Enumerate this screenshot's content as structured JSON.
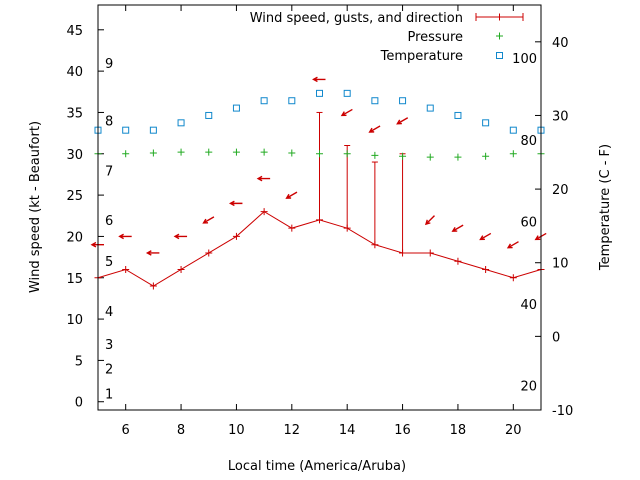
{
  "chart_data": {
    "type": "line",
    "xlabel": "Local time (America/Aruba)",
    "ylabel": "Wind speed (kt - Beaufort)",
    "y2label": "Temperature (C - F)",
    "xlim": [
      5,
      21
    ],
    "ylim": [
      -1,
      48
    ],
    "y2lim": [
      -10,
      45
    ],
    "x_ticks": [
      "6",
      "8",
      "10",
      "12",
      "14",
      "16",
      "18",
      "20"
    ],
    "y_ticks": [
      "0",
      "5",
      "10",
      "15",
      "20",
      "25",
      "30",
      "35",
      "40",
      "45"
    ],
    "y2_ticks": [
      "-10",
      "0",
      "10",
      "20",
      "30",
      "40"
    ],
    "beaufort_labels": [
      {
        "label": "1",
        "wind": 1
      },
      {
        "label": "2",
        "wind": 4
      },
      {
        "label": "3",
        "wind": 7
      },
      {
        "label": "4",
        "wind": 11
      },
      {
        "label": "5",
        "wind": 17
      },
      {
        "label": "6",
        "wind": 22
      },
      {
        "label": "7",
        "wind": 28
      },
      {
        "label": "8",
        "wind": 34
      },
      {
        "label": "9",
        "wind": 41
      }
    ],
    "fahrenheit_labels": [
      {
        "label": "20",
        "temp_c": -6.7
      },
      {
        "label": "40",
        "temp_c": 4.4
      },
      {
        "label": "60",
        "temp_c": 15.6
      },
      {
        "label": "80",
        "temp_c": 26.7
      },
      {
        "label": "100",
        "temp_c": 37.8
      }
    ],
    "legend_position": "top-right",
    "series": [
      {
        "name": "Wind speed, gusts, and direction",
        "x": [
          5,
          6,
          7,
          8,
          9,
          10,
          11,
          12,
          13,
          14,
          15,
          16,
          17,
          18,
          19,
          20,
          21
        ],
        "wind": [
          15,
          16,
          14,
          16,
          18,
          20,
          23,
          21,
          22,
          21,
          19,
          18,
          18,
          17,
          16,
          15,
          16
        ],
        "gust": [
          null,
          null,
          null,
          null,
          null,
          null,
          null,
          null,
          35,
          31,
          29,
          30,
          null,
          null,
          null,
          null,
          null
        ],
        "direction_deg": [
          90,
          90,
          90,
          90,
          60,
          90,
          90,
          60,
          90,
          60,
          60,
          60,
          45,
          60,
          60,
          60,
          60
        ],
        "arrow_height": [
          19,
          20,
          18,
          20,
          22,
          24,
          27,
          25,
          39,
          35,
          33,
          34,
          22,
          21,
          20,
          19,
          20
        ]
      },
      {
        "name": "Pressure",
        "x": [
          5,
          6,
          7,
          8,
          9,
          10,
          11,
          12,
          13,
          14,
          15,
          16,
          17,
          18,
          19,
          20,
          21
        ],
        "values": [
          30.0,
          30.0,
          30.1,
          30.2,
          30.2,
          30.2,
          30.2,
          30.1,
          30.0,
          30.0,
          29.8,
          29.7,
          29.6,
          29.6,
          29.7,
          30.0,
          30.0
        ]
      },
      {
        "name": "Temperature",
        "x": [
          5,
          6,
          7,
          8,
          9,
          10,
          11,
          12,
          13,
          14,
          15,
          16,
          17,
          18,
          19,
          20,
          21
        ],
        "values": [
          28,
          28,
          28,
          29,
          30,
          31,
          32,
          32,
          33,
          33,
          32,
          32,
          31,
          30,
          29,
          28,
          28
        ]
      }
    ]
  },
  "colors": {
    "wind": "#cc0000",
    "pressure": "#22aa22",
    "temperature": "#1188cc"
  }
}
